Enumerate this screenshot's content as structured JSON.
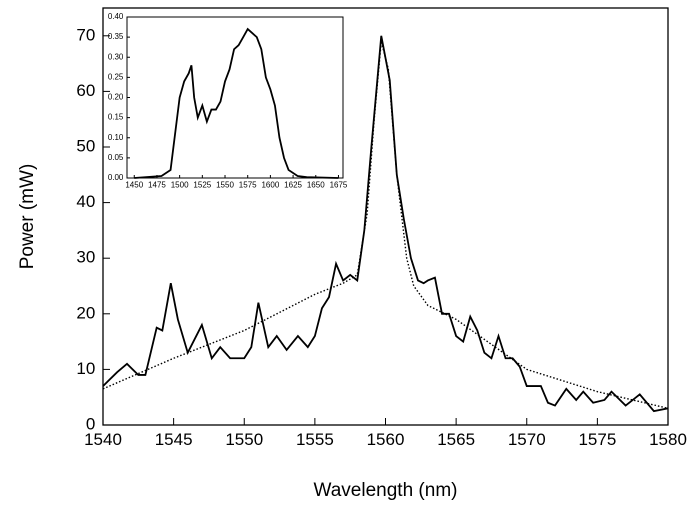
{
  "chart_data": [
    {
      "type": "line",
      "xlabel": "Wavelength (nm)",
      "ylabel": "Power (mW)",
      "xlim": [
        1540,
        1580
      ],
      "ylim": [
        0,
        75
      ],
      "xticks": [
        1540,
        1545,
        1550,
        1555,
        1560,
        1565,
        1570,
        1575,
        1580
      ],
      "yticks": [
        0,
        10,
        20,
        30,
        40,
        50,
        60,
        70
      ],
      "series": [
        {
          "color": "#000000",
          "style": "solid",
          "x": [
            1540,
            1541,
            1541.7,
            1542.5,
            1543,
            1543.8,
            1544.2,
            1544.8,
            1545.3,
            1546,
            1547,
            1547.7,
            1548.3,
            1549,
            1550,
            1550.5,
            1551,
            1551.7,
            1552.3,
            1553,
            1553.8,
            1554.5,
            1555,
            1555.5,
            1556,
            1556.5,
            1557,
            1557.5,
            1558,
            1558.5,
            1559,
            1559.7,
            1560.3,
            1560.8,
            1561.3,
            1561.8,
            1562.3,
            1562.7,
            1563,
            1563.5,
            1564,
            1564.5,
            1565,
            1565.5,
            1566,
            1566.5,
            1567,
            1567.5,
            1568,
            1568.5,
            1569,
            1569.5,
            1570,
            1571,
            1571.5,
            1572,
            1572.8,
            1573.5,
            1574,
            1574.7,
            1575.5,
            1576,
            1577,
            1578,
            1579,
            1580
          ],
          "values": [
            7,
            9.5,
            11,
            9,
            9,
            17.5,
            17,
            25.5,
            19,
            13,
            18,
            12,
            14,
            12,
            12,
            14,
            22,
            14,
            16,
            13.5,
            16,
            14,
            16,
            21,
            23,
            29,
            26,
            27,
            26,
            35,
            50,
            70,
            62,
            45,
            37,
            30,
            26,
            25.5,
            26,
            26.5,
            20,
            20,
            16,
            15,
            19.5,
            17,
            13,
            12,
            16,
            12,
            12,
            10.5,
            7,
            7,
            4,
            3.5,
            6.5,
            4.5,
            6,
            4,
            4.5,
            6,
            3.5,
            5.5,
            2.5,
            3
          ]
        },
        {
          "color": "#000000",
          "style": "dotted",
          "x": [
            1540,
            1545,
            1550,
            1555,
            1557,
            1558,
            1558.7,
            1559.2,
            1559.7,
            1560.2,
            1560.8,
            1561.5,
            1562,
            1563,
            1565,
            1570,
            1575,
            1580
          ],
          "values": [
            6.5,
            12,
            17,
            23.5,
            25.5,
            27,
            38,
            55,
            69,
            64,
            45,
            30,
            25,
            21.5,
            19,
            10,
            6,
            3
          ]
        }
      ]
    },
    {
      "type": "line",
      "xlim": [
        1442,
        1680
      ],
      "ylim": [
        0,
        0.4
      ],
      "xticks": [
        1450,
        1475,
        1500,
        1525,
        1550,
        1575,
        1600,
        1625,
        1650,
        1675
      ],
      "yticks": [
        {
          "value": 0,
          "label": "0.00"
        },
        {
          "value": 0.05,
          "label": "0.05"
        },
        {
          "value": 0.1,
          "label": "0.10"
        },
        {
          "value": 0.15,
          "label": "0.15"
        },
        {
          "value": 0.2,
          "label": "0.20"
        },
        {
          "value": 0.25,
          "label": "0.25"
        },
        {
          "value": 0.3,
          "label": "0.30"
        },
        {
          "value": 0.35,
          "label": "0.35"
        },
        {
          "value": 0.4,
          "label": "0.40"
        }
      ],
      "series": [
        {
          "color": "#000000",
          "style": "solid",
          "x": [
            1450,
            1480,
            1490,
            1500,
            1505,
            1510,
            1513,
            1516,
            1520,
            1525,
            1530,
            1535,
            1540,
            1545,
            1550,
            1555,
            1560,
            1565,
            1570,
            1575,
            1580,
            1585,
            1590,
            1595,
            1600,
            1605,
            1610,
            1615,
            1620,
            1630,
            1640,
            1675
          ],
          "values": [
            0,
            0.005,
            0.02,
            0.2,
            0.24,
            0.26,
            0.28,
            0.2,
            0.15,
            0.18,
            0.14,
            0.17,
            0.17,
            0.19,
            0.24,
            0.27,
            0.32,
            0.33,
            0.35,
            0.37,
            0.36,
            0.35,
            0.32,
            0.25,
            0.22,
            0.18,
            0.1,
            0.05,
            0.02,
            0.005,
            0.002,
            0
          ]
        }
      ]
    }
  ]
}
